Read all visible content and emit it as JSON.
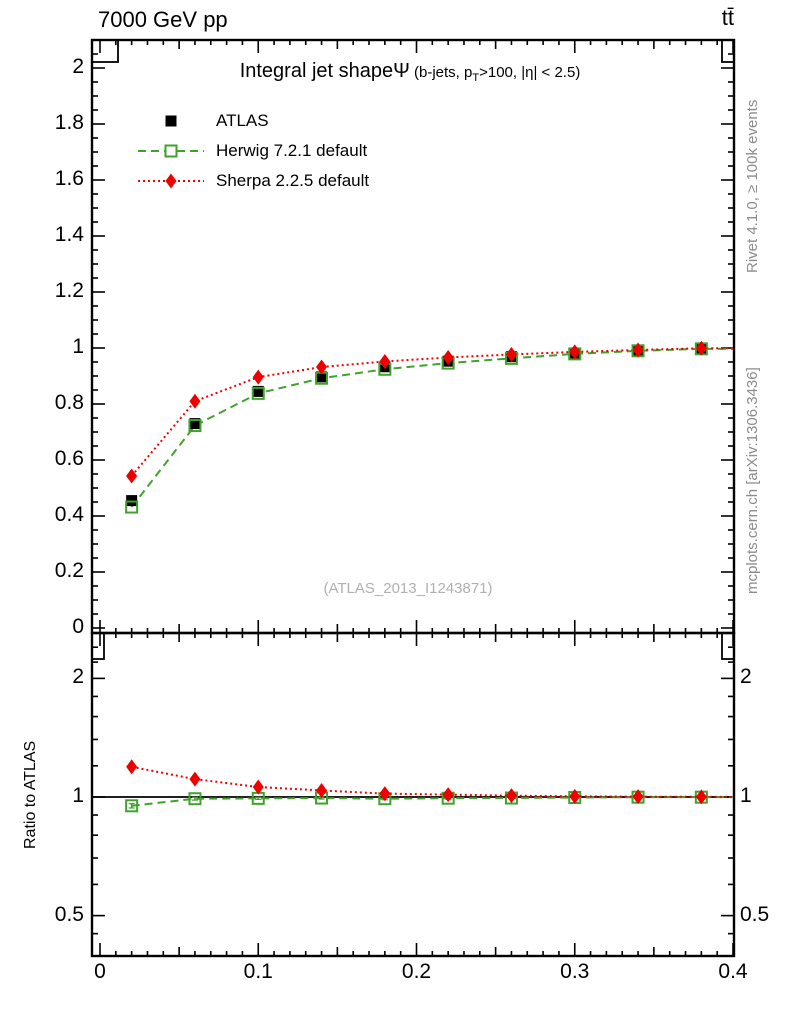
{
  "header": {
    "left": "7000 GeV pp",
    "right": "tt̄"
  },
  "title": {
    "main": "Integral jet shape",
    "symbol": "Ψ",
    "cond_pre": " (b-jets, p",
    "cond_sub": "T",
    "cond_post": ">100, |η| < 2.5)"
  },
  "legend": [
    {
      "label": "ATLAS",
      "marker": "square-filled",
      "line": "none",
      "color": "#000000"
    },
    {
      "label": "Herwig 7.2.1 default",
      "marker": "square-open",
      "line": "dashed",
      "color": "#40a22d"
    },
    {
      "label": "Sherpa 2.2.5 default",
      "marker": "diamond-filled",
      "line": "dotted",
      "color": "#ee0000"
    }
  ],
  "watermark": {
    "text": "(ATLAS_2013_I1243871)"
  },
  "notes": {
    "rivet": "Rivet 4.1.0, ≥ 100k events",
    "mcplots": "mcplots.cern.ch [arXiv:1306.3436]"
  },
  "colors": {
    "herwig_green": "#40a22d",
    "sherpa_red": "#ee0000",
    "gray_note": "#8c8c8c",
    "watermark_gray": "#b0b0b0"
  },
  "chart_data": {
    "type": "line",
    "title": "Integral jet shape Ψ (b-jets, pT>100, |η| < 2.5)",
    "beam": "7000 GeV pp",
    "process": "ttbar",
    "xlim": [
      0,
      0.4
    ],
    "xticks": [
      "0",
      "0.1",
      "0.2",
      "0.3",
      "0.4"
    ],
    "xtick_values": [
      0,
      0.1,
      0.2,
      0.3,
      0.4
    ],
    "x": [
      0.02,
      0.06,
      0.1,
      0.14,
      0.18,
      0.22,
      0.26,
      0.3,
      0.34,
      0.38
    ],
    "main_panel": {
      "ylim": [
        0,
        2.1
      ],
      "ytick_labels": [
        "2",
        "1.8",
        "1.6",
        "1.4",
        "1.2",
        "1",
        "0.8",
        "0.6",
        "0.4",
        "0.2",
        "0"
      ],
      "ytick_values": [
        2,
        1.8,
        1.6,
        1.4,
        1.2,
        1,
        0.8,
        0.6,
        0.4,
        0.2,
        0
      ],
      "series": [
        {
          "name": "ATLAS",
          "color": "#000000",
          "marker": "square-filled",
          "line": "none",
          "values": [
            0.455,
            0.73,
            0.845,
            0.897,
            0.933,
            0.953,
            0.969,
            0.982,
            0.991,
            0.998
          ]
        },
        {
          "name": "Herwig 7.2.1 default",
          "color": "#40a22d",
          "marker": "square-open",
          "line": "dashed",
          "values": [
            0.432,
            0.723,
            0.838,
            0.892,
            0.924,
            0.946,
            0.963,
            0.979,
            0.99,
            0.997
          ]
        },
        {
          "name": "Sherpa 2.2.5 default",
          "color": "#ee0000",
          "marker": "diamond-filled",
          "line": "dotted",
          "values": [
            0.543,
            0.81,
            0.896,
            0.932,
            0.952,
            0.966,
            0.977,
            0.986,
            0.993,
            0.999
          ]
        }
      ]
    },
    "ratio_panel": {
      "ylabel": "Ratio to ATLAS",
      "yscale": "log",
      "ylim": [
        0.4,
        2.6
      ],
      "ytick_labels": [
        "2",
        "1",
        "0.5"
      ],
      "ytick_values": [
        2,
        1,
        0.5
      ],
      "baseline": 1,
      "series": [
        {
          "name": "Herwig 7.2.1 default",
          "color": "#40a22d",
          "marker": "square-open",
          "line": "dashed",
          "values": [
            0.95,
            0.99,
            0.992,
            0.994,
            0.99,
            0.993,
            0.994,
            0.997,
            0.999,
            0.999
          ],
          "errors": [
            0.012,
            0.008,
            0.006,
            0.006,
            0.006,
            0.006,
            0.005,
            0.005,
            0.004,
            0.004
          ]
        },
        {
          "name": "Sherpa 2.2.5 default",
          "color": "#ee0000",
          "marker": "diamond-filled",
          "line": "dotted",
          "values": [
            1.193,
            1.11,
            1.06,
            1.039,
            1.02,
            1.014,
            1.008,
            1.004,
            1.002,
            1.001
          ],
          "errors": [
            0.015,
            0.01,
            0.008,
            0.007,
            0.006,
            0.006,
            0.005,
            0.005,
            0.004,
            0.004
          ]
        }
      ]
    }
  }
}
